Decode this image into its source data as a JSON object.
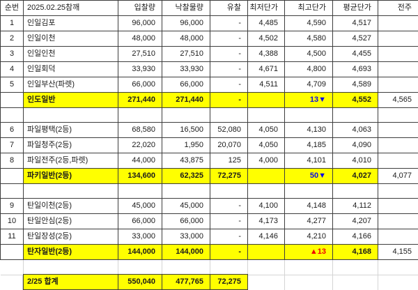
{
  "colors": {
    "highlight": "#ffff00",
    "down": "#0a0ae6",
    "up": "#f00000",
    "border": "#3d3d3d",
    "grid": "#d4d4d4"
  },
  "columns": [
    "순번",
    "2025.02.25참깨",
    "입찰량",
    "낙찰물량",
    "유찰",
    "최저단가",
    "최고단가",
    "평균단가",
    "전주"
  ],
  "rows": [
    {
      "type": "header",
      "cells": [
        "순번",
        "2025.02.25참깨",
        "입찰량",
        "낙찰물량",
        "유찰",
        "최저단가",
        "최고단가",
        "평균단가",
        "전주"
      ]
    },
    {
      "type": "data",
      "cells": [
        "1",
        "인일김포",
        "96,000",
        "96,000",
        "-",
        "4,485",
        "4,590",
        "4,517",
        ""
      ]
    },
    {
      "type": "data",
      "cells": [
        "2",
        "인일이천",
        "48,000",
        "48,000",
        "-",
        "4,502",
        "4,580",
        "4,527",
        ""
      ]
    },
    {
      "type": "data",
      "cells": [
        "3",
        "인일인천",
        "27,510",
        "27,510",
        "-",
        "4,388",
        "4,500",
        "4,455",
        ""
      ]
    },
    {
      "type": "data",
      "cells": [
        "4",
        "인일회덕",
        "33,930",
        "33,930",
        "-",
        "4,671",
        "4,800",
        "4,693",
        ""
      ]
    },
    {
      "type": "data",
      "cells": [
        "5",
        "인일부산(파렛)",
        "66,000",
        "66,000",
        "-",
        "4,511",
        "4,709",
        "4,589",
        ""
      ]
    },
    {
      "type": "summary",
      "delta": "down",
      "cells": [
        "",
        "인도일반",
        "271,440",
        "271,440",
        "-",
        "",
        "13▼",
        "4,552",
        "4,565"
      ]
    },
    {
      "type": "spacer",
      "cells": [
        "",
        "",
        "",
        "",
        "",
        "",
        "",
        "",
        ""
      ]
    },
    {
      "type": "data",
      "cells": [
        "6",
        "파일평택(2등)",
        "68,580",
        "16,500",
        "52,080",
        "4,050",
        "4,130",
        "4,063",
        ""
      ]
    },
    {
      "type": "data",
      "cells": [
        "7",
        "파일청주(2등)",
        "22,020",
        "1,950",
        "20,070",
        "4,050",
        "4,185",
        "4,090",
        ""
      ]
    },
    {
      "type": "data",
      "cells": [
        "8",
        "파일전주(2등,파렛)",
        "44,000",
        "43,875",
        "125",
        "4,000",
        "4,101",
        "4,010",
        ""
      ]
    },
    {
      "type": "summary",
      "delta": "down",
      "cells": [
        "",
        "파키일반(2등)",
        "134,600",
        "62,325",
        "72,275",
        "",
        "50▼",
        "4,027",
        "4,077"
      ]
    },
    {
      "type": "spacer",
      "cells": [
        "",
        "",
        "",
        "",
        "",
        "",
        "",
        "",
        ""
      ]
    },
    {
      "type": "data",
      "cells": [
        "9",
        "탄일이천(2등)",
        "45,000",
        "45,000",
        "-",
        "4,100",
        "4,148",
        "4,112",
        ""
      ]
    },
    {
      "type": "data",
      "cells": [
        "10",
        "탄일안심(2등)",
        "66,000",
        "66,000",
        "-",
        "4,173",
        "4,277",
        "4,207",
        ""
      ]
    },
    {
      "type": "data",
      "cells": [
        "11",
        "탄일장성(2등)",
        "33,000",
        "33,000",
        "-",
        "4,146",
        "4,210",
        "4,166",
        ""
      ]
    },
    {
      "type": "summary",
      "delta": "up",
      "cells": [
        "",
        "탄자일반(2등)",
        "144,000",
        "144,000",
        "-",
        "",
        "▲13",
        "4,168",
        "4,155"
      ]
    },
    {
      "type": "spacer_light",
      "cells": [
        "",
        "",
        "",
        "",
        "",
        "",
        "",
        "",
        ""
      ]
    },
    {
      "type": "total",
      "cells": [
        "",
        "2/25 합계",
        "550,040",
        "477,765",
        "72,275",
        "",
        "",
        "",
        ""
      ]
    }
  ]
}
